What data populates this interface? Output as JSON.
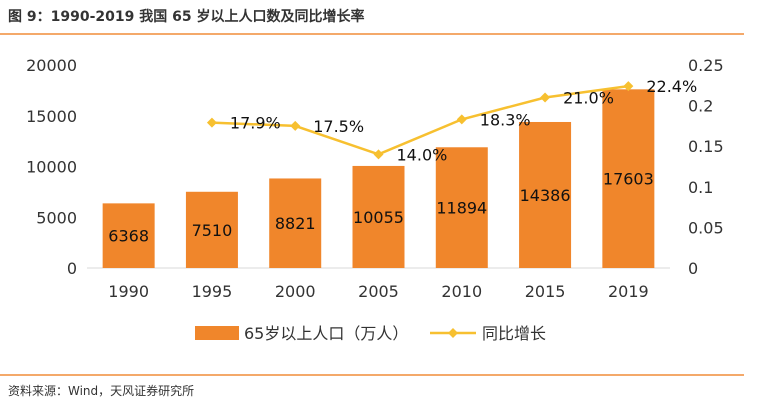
{
  "figure": {
    "title": "图 9：1990-2019  我国 65 岁以上人口数及同比增长率",
    "source": "资料来源：Wind，天风证券研究所"
  },
  "colors": {
    "bar": "#f0862b",
    "line": "#f7c030",
    "rule": "#f4a96a"
  },
  "chart_data": {
    "type": "bar",
    "categories": [
      "1990",
      "1995",
      "2000",
      "2005",
      "2010",
      "2015",
      "2019"
    ],
    "series": [
      {
        "name": "65岁以上人口（万人）",
        "type": "bar",
        "axis": "left",
        "values": [
          6368,
          7510,
          8821,
          10055,
          11894,
          14386,
          17603
        ],
        "labels": [
          "6368",
          "7510",
          "8821",
          "10055",
          "11894",
          "14386",
          "17603"
        ]
      },
      {
        "name": "同比增长",
        "type": "line",
        "axis": "right",
        "values": [
          null,
          0.179,
          0.175,
          0.14,
          0.183,
          0.21,
          0.224
        ],
        "labels": [
          "",
          "17.9%",
          "17.5%",
          "14.0%",
          "18.3%",
          "21.0%",
          "22.4%"
        ]
      }
    ],
    "y_left": {
      "min": 0,
      "max": 20000,
      "ticks": [
        "0",
        "5000",
        "10000",
        "15000",
        "20000"
      ]
    },
    "y_right": {
      "min": 0,
      "max": 0.25,
      "ticks": [
        "0",
        "0.05",
        "0.1",
        "0.15",
        "0.2",
        "0.25"
      ]
    },
    "grid": false,
    "legend_position": "bottom"
  }
}
